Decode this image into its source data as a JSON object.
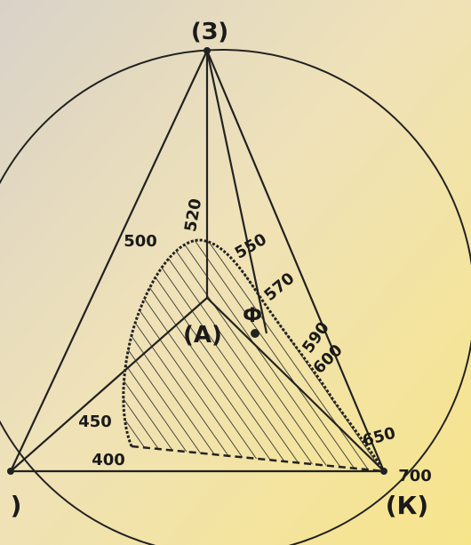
{
  "vertices": {
    "top": "(З)",
    "right": "(К)",
    "left": ")"
  },
  "center": "(А)",
  "point": "Ф",
  "wavelengths": [
    "400",
    "450",
    "500",
    "520",
    "550",
    "570",
    "590",
    "600",
    "650",
    "700"
  ]
}
